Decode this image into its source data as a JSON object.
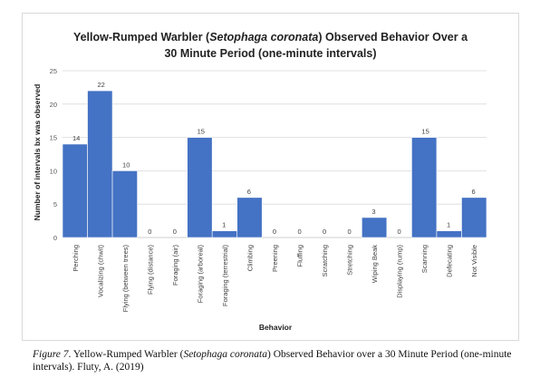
{
  "chart_data": {
    "type": "bar",
    "title": {
      "line1_before": "Yellow-Rumped Warbler (",
      "line1_italic": "Setophaga coronata",
      "line1_after": ") Observed Behavior Over a",
      "line2": "30 Minute Period (one-minute intervals)"
    },
    "xlabel": "Behavior",
    "ylabel": "Number of intervals bx was observed",
    "ylim": [
      0,
      25
    ],
    "yticks": [
      0,
      5,
      10,
      15,
      20,
      25
    ],
    "grid": true,
    "bar_color": "#4472c4",
    "categories": [
      "Perching",
      "Vocalizing (chwit)",
      "Flying (between trees)",
      "Flying (distance)",
      "Foraging (air)",
      "Foraging (arboreal)",
      "Foraging (terrestrial)",
      "Climbing",
      "Preening",
      "Fluffing",
      "Scratching",
      "Stretching",
      "Wiping Beak",
      "Displaying (rump)",
      "Scanning",
      "Defecating",
      "Not Visible"
    ],
    "values": [
      14,
      22,
      10,
      0,
      0,
      15,
      1,
      6,
      0,
      0,
      0,
      0,
      3,
      0,
      15,
      1,
      6
    ]
  },
  "caption": {
    "figure_label": "Figure 7",
    "text_before": ". Yellow-Rumped Warbler (",
    "italic": "Setophaga coronata",
    "text_after": ") Observed Behavior over a 30 Minute Period (one-minute intervals). Fluty, A. (2019)"
  }
}
